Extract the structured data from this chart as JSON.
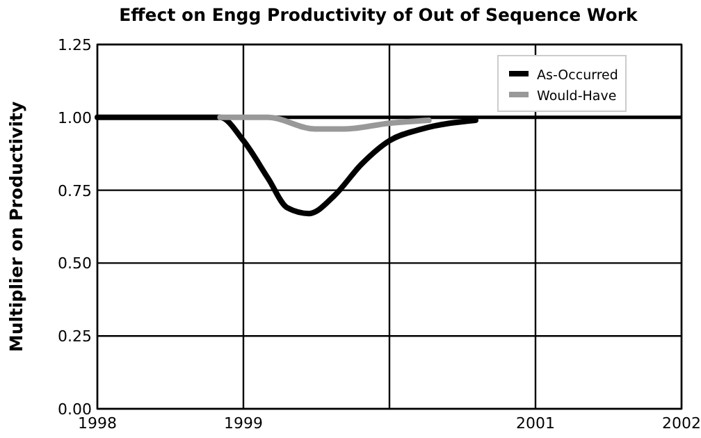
{
  "chart_data": {
    "type": "line",
    "title": "Effect on Engg Productivity of Out of Sequence Work",
    "ylabel": "Multiplier on Productivity",
    "xlim": [
      1998,
      2002
    ],
    "xticks": [
      1998,
      1999,
      {
        "value": 2000,
        "label": null
      },
      2001,
      2002
    ],
    "ylim": [
      0,
      1.25
    ],
    "yticks": [
      {
        "value": 0,
        "label": "0.00"
      },
      {
        "value": 0.25,
        "label": "0.25"
      },
      {
        "value": 0.5,
        "label": "0.50"
      },
      {
        "value": 0.75,
        "label": "0.75"
      },
      {
        "value": 1,
        "label": "1.00"
      },
      {
        "value": 1.25,
        "label": "1.25"
      }
    ],
    "grid": true,
    "legend": "top right",
    "line_style": "solid",
    "ref_lines": [
      {
        "axis": "y",
        "value": 1,
        "color": "#000000"
      }
    ],
    "series": [
      {
        "name": "As-Occurred",
        "color": "#000000",
        "x": [
          1998,
          1998.84,
          1999.0,
          1999.17,
          1999.3,
          1999.45,
          1999.62,
          1999.81,
          2000.0,
          2000.22,
          2000.59
        ],
        "values": [
          1.0,
          1.0,
          0.92,
          0.79,
          0.69,
          0.67,
          0.73,
          0.84,
          0.92,
          0.96,
          0.99
        ]
      },
      {
        "name": "Would-Have",
        "color": "#999999",
        "x": [
          1998.84,
          1999.17,
          1999.49,
          1999.69,
          2000.0,
          2000.27
        ],
        "values": [
          1.0,
          1.0,
          0.96,
          0.96,
          0.98,
          0.99
        ]
      }
    ]
  }
}
